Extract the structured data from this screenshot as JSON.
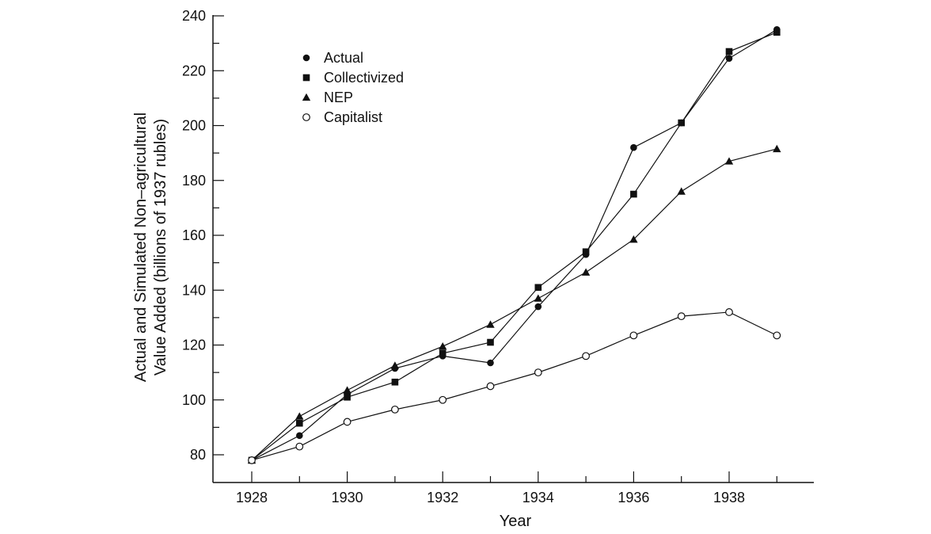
{
  "chart_data": {
    "type": "line",
    "xlabel": "Year",
    "ylabel": "Actual and Simulated Non-agricultural Value Added (billions of 1937 rubles)",
    "ylabel_lines": [
      "Actual and Simulated Non–agricultural",
      "Value Added (billions of 1937 rubles)"
    ],
    "x": [
      1928,
      1929,
      1930,
      1931,
      1932,
      1933,
      1934,
      1935,
      1936,
      1937,
      1938,
      1939
    ],
    "xlim": [
      1928,
      1939
    ],
    "ylim": [
      70,
      240
    ],
    "x_ticks": [
      1928,
      1930,
      1932,
      1934,
      1936,
      1938
    ],
    "y_ticks": [
      80,
      100,
      120,
      140,
      160,
      180,
      200,
      220,
      240
    ],
    "grid": false,
    "legend_position": "top-left",
    "series": [
      {
        "name": "Actual",
        "marker": "filled-circle",
        "values": [
          78,
          87,
          102,
          111.5,
          116,
          113.5,
          134,
          153,
          192,
          201,
          224.5,
          235
        ]
      },
      {
        "name": "Collectivized",
        "marker": "filled-square",
        "values": [
          78,
          91.5,
          101,
          106.5,
          117,
          121,
          141,
          154,
          175,
          201,
          227,
          234
        ]
      },
      {
        "name": "NEP",
        "marker": "filled-triangle",
        "values": [
          78,
          94,
          103.5,
          112.5,
          119.5,
          127.5,
          137,
          146.5,
          158.5,
          176,
          187,
          191.5
        ]
      },
      {
        "name": "Capitalist",
        "marker": "open-circle",
        "values": [
          78,
          83,
          92,
          96.5,
          100,
          105,
          110,
          116,
          123.5,
          130.5,
          132,
          123.5
        ]
      }
    ]
  }
}
